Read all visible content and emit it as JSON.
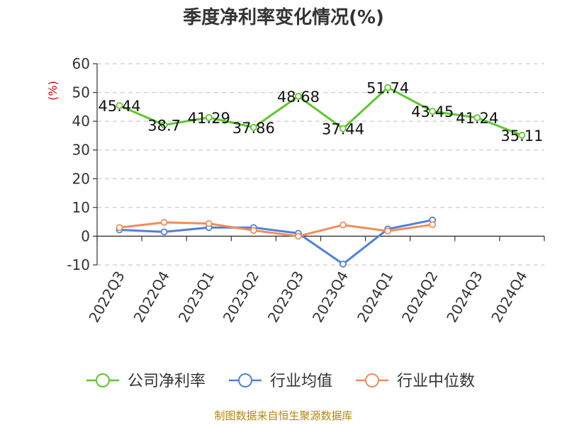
{
  "chart_data": {
    "type": "line",
    "title": "季度净利率变化情况(%)",
    "ylabel": "(%)",
    "categories": [
      "2022Q3",
      "2022Q4",
      "2023Q1",
      "2023Q2",
      "2023Q3",
      "2023Q4",
      "2024Q1",
      "2024Q2",
      "2024Q3",
      "2024Q4"
    ],
    "ylim": [
      -10,
      60
    ],
    "yticks": [
      "-10",
      "0",
      "10",
      "20",
      "30",
      "40",
      "50",
      "60"
    ],
    "grid": true,
    "legend_position": "bottom",
    "series": [
      {
        "name": "公司净利率",
        "color": "#5cc72b",
        "values": [
          45.44,
          38.7,
          41.29,
          37.86,
          48.68,
          37.44,
          51.74,
          43.45,
          41.24,
          35.11
        ],
        "labels": [
          "45.44",
          "38.7",
          "41.29",
          "37.86",
          "48.68",
          "37.44",
          "51.74",
          "43.45",
          "41.24",
          "35.11"
        ]
      },
      {
        "name": "行业均值",
        "color": "#4f81d9",
        "values": [
          2.2,
          1.5,
          3.0,
          3.0,
          1.0,
          -9.7,
          2.5,
          5.6,
          null,
          null
        ]
      },
      {
        "name": "行业中位数",
        "color": "#f28c5a",
        "values": [
          3.0,
          4.8,
          4.4,
          2.0,
          0.0,
          3.9,
          1.8,
          4.0,
          null,
          null
        ]
      }
    ]
  },
  "footer": {
    "source": "制图数据来自恒生聚源数据库"
  }
}
